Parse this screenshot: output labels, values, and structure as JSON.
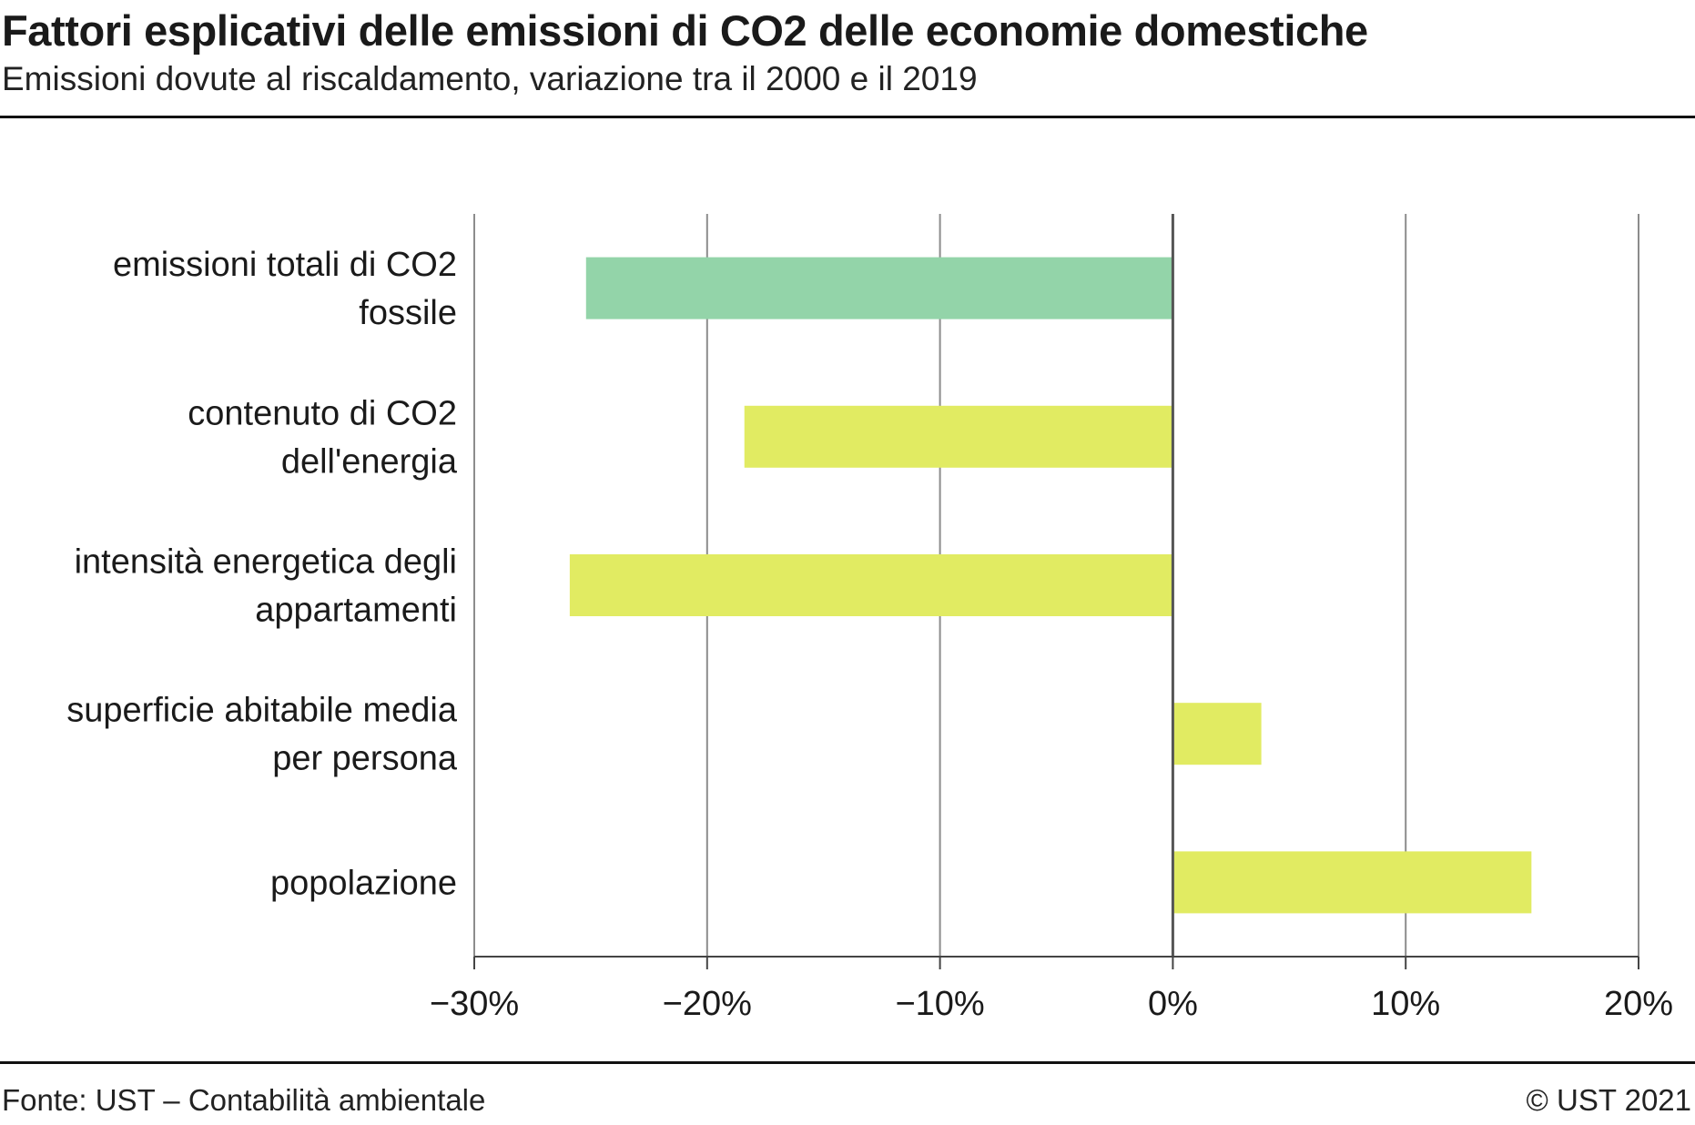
{
  "header": {
    "title": "Fattori esplicativi delle emissioni di CO2 delle economie domestiche",
    "subtitle": "Emissioni dovute al riscaldamento, variazione tra il 2000 e il 2019"
  },
  "footer": {
    "source": "Fonte: UST – Contabilità ambientale",
    "copyright": "© UST 2021"
  },
  "chart_data": {
    "type": "bar",
    "orientation": "horizontal",
    "categories": [
      [
        "emissioni totali di CO2",
        "fossile"
      ],
      [
        "contenuto di CO2",
        "dell'energia"
      ],
      [
        "intensità energetica degli",
        "appartamenti"
      ],
      [
        "superficie abitabile media",
        "per persona"
      ],
      [
        "popolazione"
      ]
    ],
    "values": [
      -25.2,
      -18.4,
      -25.9,
      3.8,
      15.4
    ],
    "colors": [
      "#93d4a9",
      "#e1eb62",
      "#e1eb62",
      "#e1eb62",
      "#e1eb62"
    ],
    "xlim": [
      -30,
      20
    ],
    "ticks": [
      -30,
      -20,
      -10,
      0,
      10,
      20
    ],
    "tick_labels": [
      "−30%",
      "−20%",
      "−10%",
      "0%",
      "10%",
      "20%"
    ],
    "grid": true,
    "xlabel": "",
    "ylabel": ""
  }
}
